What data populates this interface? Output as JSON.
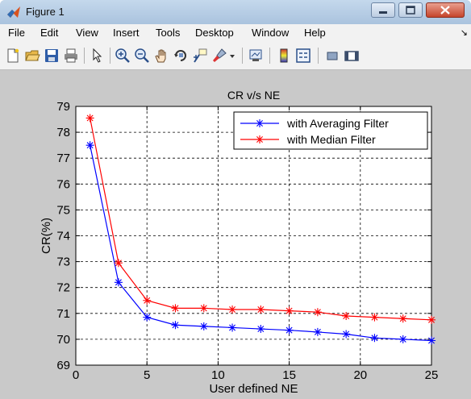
{
  "window": {
    "title": "Figure 1"
  },
  "menu": {
    "items": [
      "File",
      "Edit",
      "View",
      "Insert",
      "Tools",
      "Desktop",
      "Window",
      "Help"
    ]
  },
  "toolbar": {
    "icons": [
      "new-figure-icon",
      "open-file-icon",
      "save-icon",
      "print-icon",
      "pointer-icon",
      "zoom-in-icon",
      "zoom-out-icon",
      "pan-icon",
      "rotate-3d-icon",
      "data-cursor-icon",
      "brush-icon",
      "brush-dropdown-icon",
      "link-plot-icon",
      "colorbar-icon",
      "legend-icon",
      "hide-plot-tools-icon",
      "show-plot-tools-icon"
    ]
  },
  "colors": {
    "series1": "#0000ff",
    "series2": "#ff0000",
    "axes_bg": "#ffffff",
    "figure_bg": "#c9c9c9"
  },
  "chart_data": {
    "type": "line",
    "title": "CR v/s NE",
    "xlabel": "User defined NE",
    "ylabel": "CR(%)",
    "xlim": [
      0,
      25
    ],
    "ylim": [
      69,
      79
    ],
    "xticks": [
      0,
      5,
      10,
      15,
      20,
      25
    ],
    "yticks": [
      69,
      70,
      71,
      72,
      73,
      74,
      75,
      76,
      77,
      78,
      79
    ],
    "grid": true,
    "legend_position": "top-right",
    "series": [
      {
        "name": "with Averaging Filter",
        "color": "#0000ff",
        "marker": "*",
        "x": [
          1,
          3,
          5,
          7,
          9,
          11,
          13,
          15,
          17,
          19,
          21,
          23,
          25
        ],
        "y": [
          77.5,
          72.2,
          70.85,
          70.55,
          70.5,
          70.45,
          70.4,
          70.35,
          70.28,
          70.2,
          70.05,
          70.0,
          69.95
        ]
      },
      {
        "name": "with Median Filter",
        "color": "#ff0000",
        "marker": "*",
        "x": [
          1,
          3,
          5,
          7,
          9,
          11,
          13,
          15,
          17,
          19,
          21,
          23,
          25
        ],
        "y": [
          78.55,
          72.95,
          71.5,
          71.2,
          71.2,
          71.15,
          71.15,
          71.1,
          71.05,
          70.9,
          70.85,
          70.8,
          70.75
        ]
      }
    ]
  }
}
